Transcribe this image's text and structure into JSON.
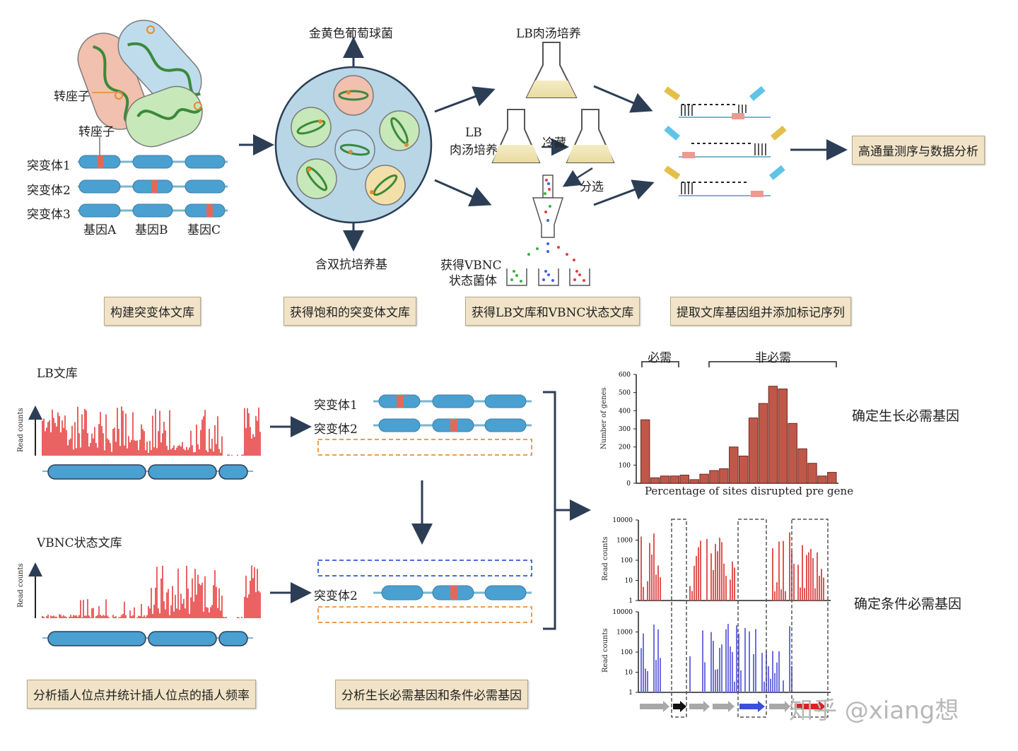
{
  "top": {
    "transposon_label_1": "转座子",
    "transposon_label_2": "转座子",
    "mutants": [
      "突变体1",
      "突变体2",
      "突变体3"
    ],
    "genes": [
      "基因A",
      "基因B",
      "基因C"
    ],
    "saureus": "金黄色葡萄球菌",
    "double_antibiotic": "含双抗培养基",
    "lb_culture_top": "LB肉汤培养",
    "lb_culture_left_1": "LB",
    "lb_culture_left_2": "肉汤培养",
    "refrigerate": "冷藏",
    "sort": "分选",
    "vbnc_1": "获得VBNC",
    "vbnc_2": "状态菌体",
    "sequencing": "高通量测序与数据分析"
  },
  "steps": [
    "构建突变体文库",
    "获得饱和的突变体文库",
    "获得LB文库和VBNC状态文库",
    "提取文库基因组并添加标记序列"
  ],
  "bottom": {
    "lb_library": "LB文库",
    "vbnc_library": "VBNC状态文库",
    "read_counts": "Read counts",
    "mutant1": "突变体1",
    "mutant2": "突变体2",
    "mutant2b": "突变体2",
    "step_analyze_insert": "分析插人位点并统计插人位点的插人频率",
    "step_analyze_essential": "分析生长必需基因和条件必需基因",
    "determine_growth": "确定生长必需基因",
    "determine_conditional": "确定条件必需基因",
    "watermark": "知乎 @xiang想"
  },
  "chart_data": [
    {
      "type": "bar",
      "title": "",
      "xlabel": "Percentage of sites disrupted pre gene",
      "ylabel": "Number of genes",
      "ylim": [
        0,
        600
      ],
      "yticks": [
        0,
        100,
        200,
        300,
        400,
        500,
        600
      ],
      "values": [
        350,
        30,
        40,
        40,
        45,
        20,
        50,
        70,
        80,
        200,
        150,
        360,
        440,
        535,
        520,
        330,
        190,
        110,
        40,
        60
      ],
      "bracket_labels": [
        "必需",
        "非必需"
      ],
      "bar_color": "#c0584a"
    },
    {
      "type": "bar",
      "title": "",
      "ylabel": "Read counts",
      "scale": "log",
      "yticks": [
        "1",
        "10",
        "100",
        "1000",
        "10000"
      ],
      "series": [
        {
          "color": "#e05555"
        },
        {
          "color": "#6f6fe0"
        }
      ]
    }
  ]
}
